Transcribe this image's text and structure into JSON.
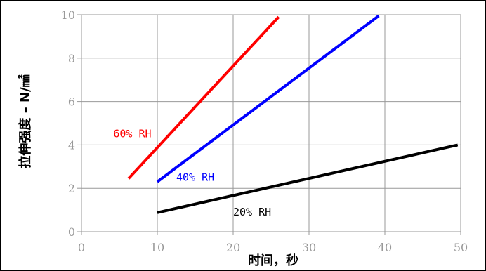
{
  "chart_data": {
    "type": "line",
    "xlabel": "时间，秒",
    "ylabel": "拉伸强度 – N/㎟",
    "xlim": [
      0,
      50
    ],
    "ylim": [
      0,
      10
    ],
    "x_ticks": [
      "0",
      "10",
      "20",
      "30",
      "40",
      "50"
    ],
    "y_ticks": [
      "0",
      "2",
      "4",
      "6",
      "8",
      "10"
    ],
    "grid": true,
    "series": [
      {
        "name": "60% RH",
        "color": "#ff0000",
        "points": [
          [
            6.2,
            2.45
          ],
          [
            26,
            9.9
          ]
        ]
      },
      {
        "name": "40% RH",
        "color": "#0000ff",
        "points": [
          [
            10,
            2.3
          ],
          [
            39.2,
            9.95
          ]
        ]
      },
      {
        "name": "20% RH",
        "color": "#000000",
        "points": [
          [
            10,
            0.88
          ],
          [
            49.6,
            4.0
          ]
        ]
      }
    ]
  }
}
